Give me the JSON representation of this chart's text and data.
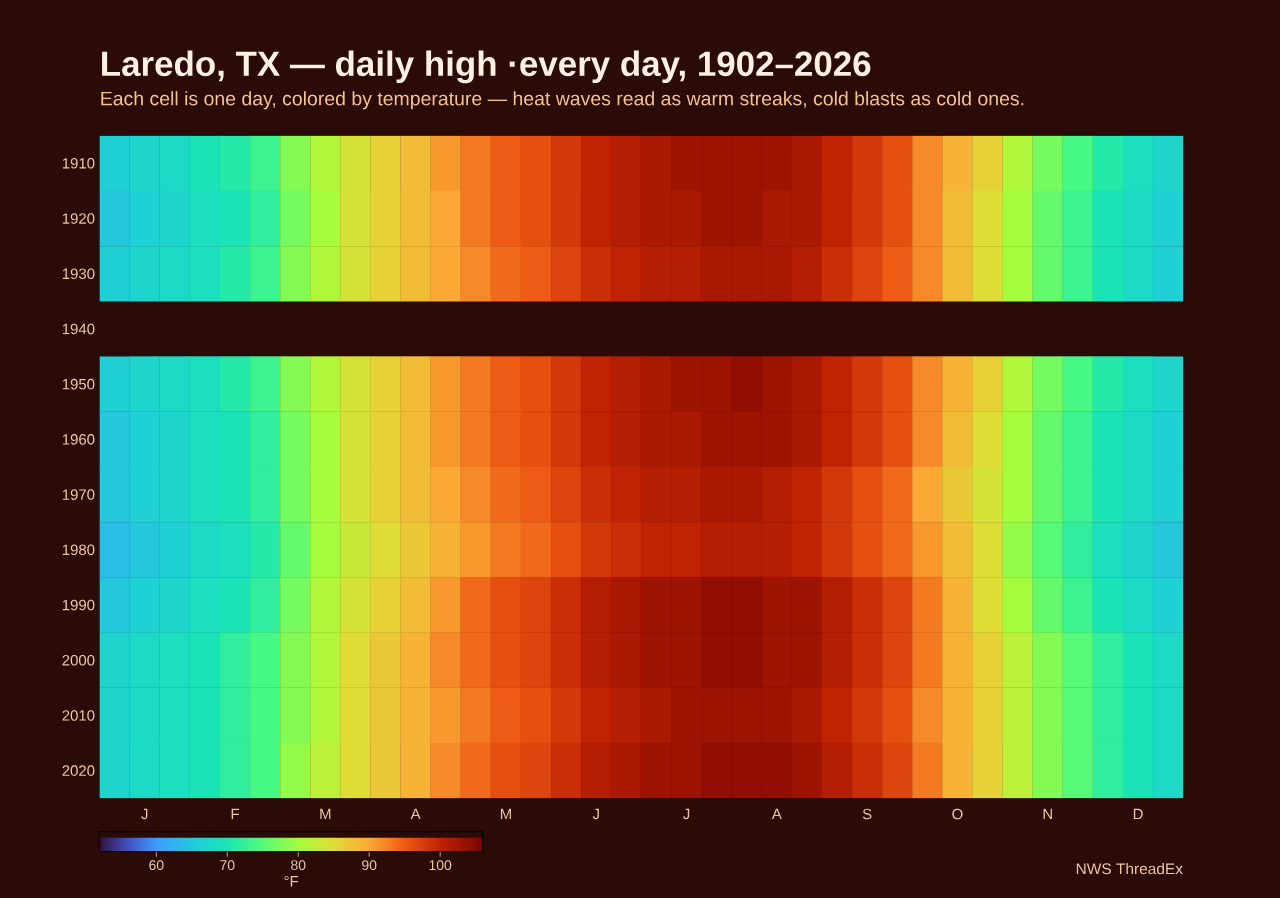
{
  "chart_data": {
    "type": "heatmap",
    "title": "Laredo, TX — daily high ·every day, 1902–2026",
    "subtitle": "Each cell is one day, colored by temperature — heat waves read as warm streaks, cold blasts as cold ones.",
    "categories": [
      null,
      "J",
      null,
      null,
      "F",
      null,
      null,
      "M",
      null,
      null,
      "A",
      null,
      null,
      "M",
      null,
      null,
      "J",
      null,
      null,
      "J",
      null,
      null,
      "A",
      null,
      null,
      "S",
      null,
      null,
      "O",
      null,
      null,
      "N",
      null,
      null,
      "D",
      null
    ],
    "y_categories": [
      "1910",
      "1920",
      "1930",
      "1940",
      "1950",
      "1960",
      "1970",
      "1980",
      "1990",
      "2000",
      "2010",
      "2020"
    ],
    "cells": [
      [
        66,
        67,
        68,
        70,
        71,
        73,
        78,
        81,
        84,
        86,
        88,
        91,
        93,
        95,
        96,
        98,
        100,
        101,
        102,
        103,
        103,
        103,
        103,
        102,
        100,
        98,
        96,
        92,
        89,
        86,
        81,
        77,
        74,
        71,
        69,
        67
      ],
      [
        65,
        66,
        67,
        69,
        70,
        72,
        77,
        80,
        84,
        86,
        88,
        90,
        93,
        95,
        96,
        98,
        100,
        101,
        102,
        102,
        103,
        103,
        102,
        102,
        100,
        98,
        96,
        92,
        88,
        85,
        80,
        76,
        73,
        70,
        68,
        66
      ],
      [
        66,
        67,
        68,
        69,
        71,
        73,
        78,
        81,
        84,
        86,
        88,
        90,
        92,
        94,
        95,
        97,
        99,
        100,
        101,
        101,
        102,
        102,
        102,
        101,
        99,
        97,
        95,
        92,
        88,
        85,
        80,
        76,
        73,
        70,
        68,
        66
      ],
      [
        null,
        null,
        null,
        null,
        null,
        null,
        null,
        null,
        null,
        null,
        null,
        null,
        null,
        null,
        null,
        null,
        null,
        null,
        null,
        null,
        null,
        null,
        null,
        null,
        null,
        null,
        null,
        null,
        null,
        null,
        null,
        null,
        null,
        null,
        null,
        null
      ],
      [
        66,
        67,
        68,
        69,
        71,
        73,
        78,
        81,
        84,
        86,
        88,
        91,
        93,
        95,
        96,
        98,
        100,
        101,
        102,
        103,
        103,
        104,
        103,
        102,
        100,
        98,
        96,
        92,
        89,
        86,
        81,
        77,
        74,
        71,
        69,
        67
      ],
      [
        65,
        66,
        67,
        69,
        70,
        72,
        77,
        80,
        84,
        86,
        88,
        91,
        93,
        95,
        96,
        98,
        100,
        101,
        102,
        102,
        103,
        103,
        103,
        102,
        100,
        98,
        96,
        92,
        88,
        85,
        80,
        76,
        73,
        70,
        68,
        66
      ],
      [
        65,
        66,
        67,
        69,
        70,
        72,
        77,
        80,
        84,
        86,
        88,
        90,
        92,
        94,
        95,
        97,
        99,
        100,
        101,
        101,
        102,
        102,
        101,
        100,
        98,
        96,
        94,
        90,
        87,
        84,
        80,
        76,
        73,
        70,
        68,
        66
      ],
      [
        64,
        65,
        66,
        68,
        69,
        71,
        76,
        80,
        83,
        85,
        87,
        89,
        91,
        93,
        94,
        96,
        98,
        99,
        100,
        100,
        101,
        101,
        101,
        100,
        98,
        96,
        94,
        91,
        88,
        85,
        79,
        75,
        72,
        69,
        67,
        65
      ],
      [
        65,
        66,
        67,
        69,
        70,
        72,
        77,
        81,
        84,
        86,
        88,
        91,
        94,
        96,
        97,
        99,
        101,
        102,
        103,
        103,
        104,
        104,
        103,
        103,
        101,
        99,
        97,
        93,
        89,
        85,
        80,
        76,
        73,
        70,
        68,
        66
      ],
      [
        67,
        68,
        69,
        70,
        72,
        74,
        78,
        81,
        85,
        87,
        89,
        92,
        94,
        96,
        97,
        99,
        101,
        102,
        103,
        103,
        104,
        104,
        103,
        103,
        101,
        99,
        97,
        93,
        89,
        86,
        82,
        78,
        75,
        72,
        70,
        68
      ],
      [
        67,
        68,
        69,
        70,
        72,
        74,
        78,
        81,
        85,
        87,
        89,
        91,
        93,
        95,
        96,
        98,
        100,
        101,
        102,
        103,
        103,
        103,
        103,
        102,
        100,
        98,
        96,
        92,
        89,
        86,
        82,
        78,
        75,
        72,
        70,
        68
      ],
      [
        67,
        68,
        69,
        70,
        72,
        74,
        79,
        82,
        85,
        87,
        89,
        92,
        94,
        96,
        97,
        99,
        101,
        102,
        103,
        103,
        104,
        104,
        104,
        103,
        101,
        99,
        97,
        93,
        89,
        86,
        82,
        78,
        75,
        72,
        70,
        68
      ]
    ],
    "clim": [
      52,
      106
    ],
    "cticks": [
      60,
      70,
      80,
      90,
      100
    ],
    "clabel": "°F",
    "annotations": [
      "NWS ThreadEx"
    ]
  }
}
